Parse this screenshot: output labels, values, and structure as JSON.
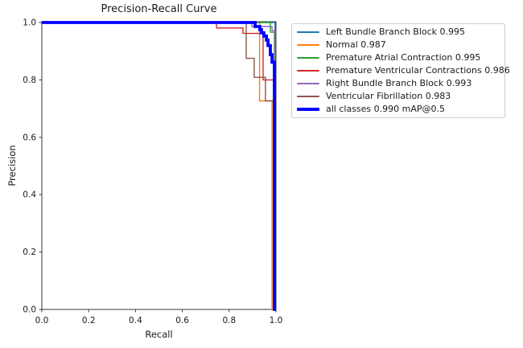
{
  "chart_data": {
    "type": "line",
    "title": "Precision-Recall Curve",
    "xlabel": "Recall",
    "ylabel": "Precision",
    "xlim": [
      0.0,
      1.0
    ],
    "ylim": [
      0.0,
      1.0
    ],
    "x_ticks": [
      "0.0",
      "0.2",
      "0.4",
      "0.6",
      "0.8",
      "1.0"
    ],
    "y_ticks": [
      "0.0",
      "0.2",
      "0.4",
      "0.6",
      "0.8",
      "1.0"
    ],
    "grid": false,
    "legend_position": "outside-upper-right",
    "axis_color": "#3a3a3a",
    "text_color": "#1a1a1a",
    "series": [
      {
        "name": "Left Bundle Branch Block",
        "ap": 0.995,
        "label": "Left Bundle Branch Block 0.995",
        "color": "#1f77b4",
        "linewidth": 1.4,
        "points": [
          [
            0,
            1
          ],
          [
            0.996,
            1
          ],
          [
            0.996,
            0
          ],
          [
            1,
            0
          ]
        ]
      },
      {
        "name": "Normal",
        "ap": 0.987,
        "label": "Normal 0.987",
        "color": "#ff7f0e",
        "linewidth": 1.4,
        "points": [
          [
            0,
            1
          ],
          [
            0.93,
            1
          ],
          [
            0.93,
            0.727
          ],
          [
            0.983,
            0.727
          ],
          [
            0.983,
            0
          ],
          [
            1,
            0
          ]
        ]
      },
      {
        "name": "Premature Atrial Contraction",
        "ap": 0.995,
        "label": "Premature Atrial Contraction 0.995",
        "color": "#2ca02c",
        "linewidth": 1.4,
        "points": [
          [
            0,
            1
          ],
          [
            0.976,
            1
          ],
          [
            0.976,
            0.966
          ],
          [
            0.993,
            0.966
          ],
          [
            0.993,
            0
          ],
          [
            1,
            0
          ]
        ]
      },
      {
        "name": "Premature Ventricular Contractions",
        "ap": 0.986,
        "label": "Premature Ventricular Contractions 0.986",
        "color": "#d62728",
        "linewidth": 1.4,
        "points": [
          [
            0,
            1
          ],
          [
            0.746,
            1
          ],
          [
            0.746,
            0.981
          ],
          [
            0.859,
            0.981
          ],
          [
            0.859,
            0.962
          ],
          [
            0.945,
            0.962
          ],
          [
            0.945,
            0.8
          ],
          [
            0.99,
            0.8
          ],
          [
            0.99,
            0
          ],
          [
            1,
            0
          ]
        ]
      },
      {
        "name": "Right Bundle Branch Block",
        "ap": 0.993,
        "label": "Right Bundle Branch Block 0.993",
        "color": "#9467bd",
        "linewidth": 1.4,
        "points": [
          [
            0,
            1
          ],
          [
            0.897,
            1
          ],
          [
            0.897,
            0.986
          ],
          [
            0.983,
            0.986
          ],
          [
            0.983,
            0.972
          ],
          [
            0.996,
            0.972
          ],
          [
            0.996,
            0
          ],
          [
            1,
            0
          ]
        ]
      },
      {
        "name": "Ventricular Fibrillation",
        "ap": 0.983,
        "label": "Ventricular Fibrillation 0.983",
        "color": "#8c564b",
        "linewidth": 1.4,
        "points": [
          [
            0,
            1
          ],
          [
            0.873,
            1
          ],
          [
            0.873,
            0.875
          ],
          [
            0.907,
            0.875
          ],
          [
            0.907,
            0.809
          ],
          [
            0.955,
            0.809
          ],
          [
            0.955,
            0.727
          ],
          [
            0.99,
            0.727
          ],
          [
            0.99,
            0
          ],
          [
            1,
            0
          ]
        ]
      },
      {
        "name": "all classes",
        "ap": 0.99,
        "map_at": "mAP@0.5",
        "label": "all classes 0.990 mAP@0.5",
        "color": "#0000ff",
        "linewidth": 3.8,
        "points": [
          [
            0,
            1
          ],
          [
            0.911,
            1
          ],
          [
            0.911,
            0.986
          ],
          [
            0.931,
            0.986
          ],
          [
            0.931,
            0.975
          ],
          [
            0.938,
            0.975
          ],
          [
            0.938,
            0.964
          ],
          [
            0.948,
            0.964
          ],
          [
            0.948,
            0.953
          ],
          [
            0.959,
            0.953
          ],
          [
            0.959,
            0.939
          ],
          [
            0.966,
            0.939
          ],
          [
            0.966,
            0.92
          ],
          [
            0.976,
            0.92
          ],
          [
            0.976,
            0.888
          ],
          [
            0.983,
            0.888
          ],
          [
            0.983,
            0.862
          ],
          [
            0.993,
            0.862
          ],
          [
            0.993,
            0
          ],
          [
            1,
            0
          ]
        ]
      }
    ]
  }
}
